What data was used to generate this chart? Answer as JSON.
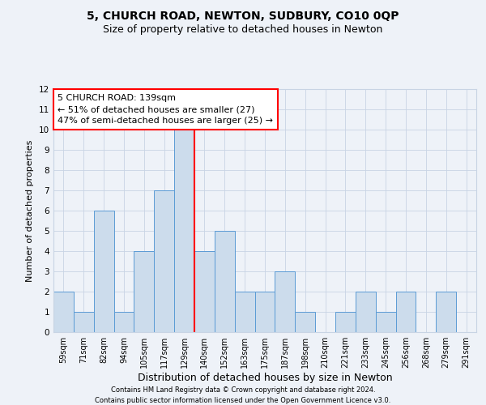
{
  "title": "5, CHURCH ROAD, NEWTON, SUDBURY, CO10 0QP",
  "subtitle": "Size of property relative to detached houses in Newton",
  "xlabel": "Distribution of detached houses by size in Newton",
  "ylabel": "Number of detached properties",
  "categories": [
    "59sqm",
    "71sqm",
    "82sqm",
    "94sqm",
    "105sqm",
    "117sqm",
    "129sqm",
    "140sqm",
    "152sqm",
    "163sqm",
    "175sqm",
    "187sqm",
    "198sqm",
    "210sqm",
    "221sqm",
    "233sqm",
    "245sqm",
    "256sqm",
    "268sqm",
    "279sqm",
    "291sqm"
  ],
  "values": [
    2,
    1,
    6,
    1,
    4,
    7,
    10,
    4,
    5,
    2,
    2,
    3,
    1,
    0,
    1,
    2,
    1,
    2,
    0,
    2,
    0
  ],
  "bar_color": "#ccdcec",
  "bar_edge_color": "#5b9bd5",
  "red_line_index": 6,
  "annotation_text": "5 CHURCH ROAD: 139sqm\n← 51% of detached houses are smaller (27)\n47% of semi-detached houses are larger (25) →",
  "annotation_box_color": "white",
  "annotation_box_edge": "red",
  "ylim": [
    0,
    12
  ],
  "yticks": [
    0,
    1,
    2,
    3,
    4,
    5,
    6,
    7,
    8,
    9,
    10,
    11,
    12
  ],
  "grid_color": "#c8d4e4",
  "footer1": "Contains HM Land Registry data © Crown copyright and database right 2024.",
  "footer2": "Contains public sector information licensed under the Open Government Licence v3.0.",
  "bg_color": "#eef2f8",
  "title_fontsize": 10,
  "subtitle_fontsize": 9,
  "ylabel_fontsize": 8,
  "xlabel_fontsize": 9,
  "tick_fontsize": 7,
  "footer_fontsize": 6,
  "ann_fontsize": 8
}
